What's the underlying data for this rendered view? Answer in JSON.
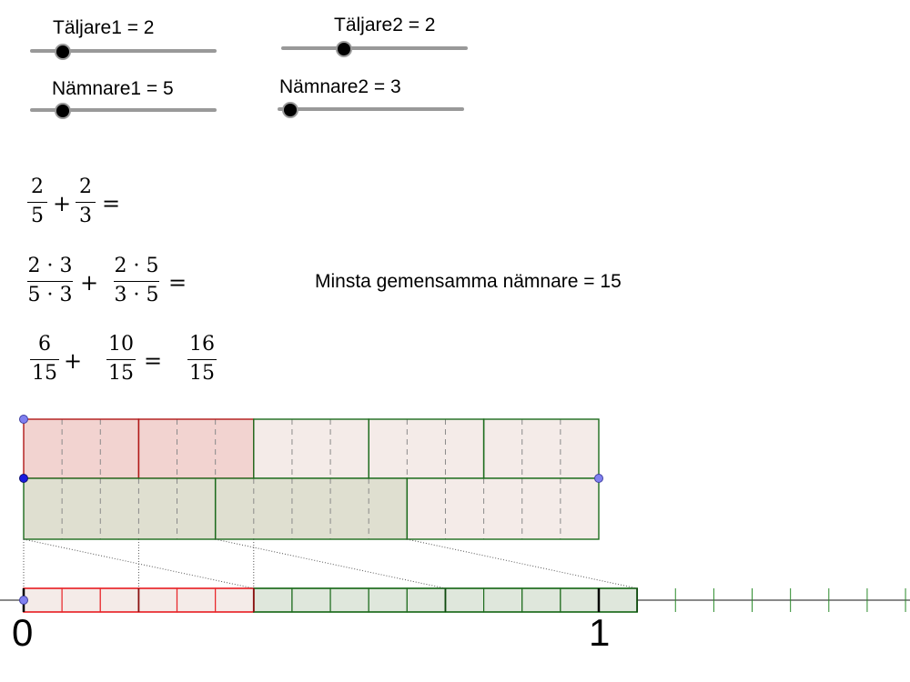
{
  "sliders": [
    {
      "id": "taljare1",
      "label": "Täljare1 = 2",
      "value": 2
    },
    {
      "id": "taljare2",
      "label": "Täljare2 = 2",
      "value": 2
    },
    {
      "id": "namnare1",
      "label": "Nämnare1 = 5",
      "value": 5
    },
    {
      "id": "namnare2",
      "label": "Nämnare2 = 3",
      "value": 3
    }
  ],
  "equations": {
    "row1": {
      "a_num": "2",
      "a_den": "5",
      "b_num": "2",
      "b_den": "3",
      "plus": "+",
      "equals": "="
    },
    "row2": {
      "a_num": "2 · 3",
      "a_den": "5 · 3",
      "b_num": "2 · 5",
      "b_den": "3 · 5",
      "plus": "+",
      "equals": "="
    },
    "row3": {
      "a_num": "6",
      "a_den": "15",
      "b_num": "10",
      "b_den": "15",
      "r_num": "16",
      "r_den": "15",
      "plus": "+",
      "equals": "="
    }
  },
  "lcd_text": "Minsta gemensamma nämnare = 15",
  "number_line": {
    "label_zero": "0",
    "label_one": "1"
  },
  "colors": {
    "red": "#e8262a",
    "red_fill": "#f2d3d0",
    "red_light": "#f4ebe8",
    "green": "#1c6b1c",
    "green_fill": "#dfdfd0",
    "point": "#8080f0",
    "point_dark": "#1a1adf"
  }
}
